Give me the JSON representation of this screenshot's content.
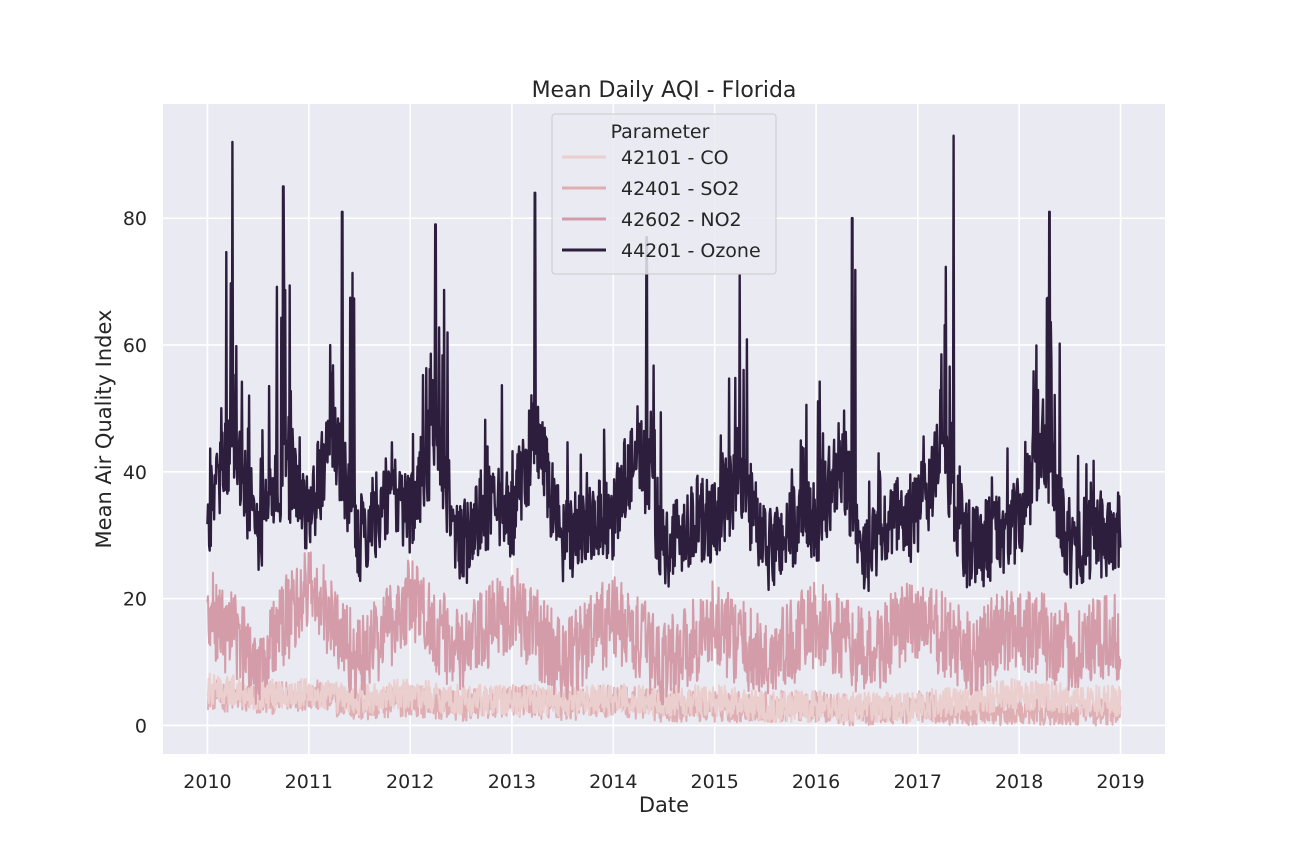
{
  "chart_data": {
    "type": "line",
    "title": "Mean Daily AQI - Florida",
    "xlabel": "Date",
    "ylabel": "Mean Air Quality Index",
    "xlim": [
      "2009-07-25",
      "2019-06-10"
    ],
    "ylim": [
      -4.5,
      98
    ],
    "x_ticks": [
      "2010",
      "2011",
      "2012",
      "2013",
      "2014",
      "2015",
      "2016",
      "2017",
      "2018",
      "2019"
    ],
    "y_ticks": [
      "0",
      "20",
      "40",
      "60",
      "80"
    ],
    "grid": true,
    "legend": {
      "title": "Parameter",
      "placement": "upper-center"
    },
    "background_color": "#eaeaf2",
    "series": [
      {
        "name": "42101 - CO",
        "color": "#ebcfcf",
        "x": [
          "2010-01-01",
          "2010-07-01",
          "2011-01-01",
          "2011-07-01",
          "2012-01-01",
          "2012-07-01",
          "2013-01-01",
          "2013-07-01",
          "2014-01-01",
          "2014-07-01",
          "2015-01-01",
          "2015-07-01",
          "2016-01-01",
          "2016-07-01",
          "2017-01-01",
          "2017-07-01",
          "2018-01-01",
          "2018-07-01",
          "2019-01-01"
        ],
        "values": [
          6,
          5,
          5,
          4,
          5,
          4,
          4,
          4,
          4,
          4,
          4,
          3,
          3,
          3,
          3,
          4,
          5,
          4,
          4
        ]
      },
      {
        "name": "42401 - SO2",
        "color": "#dfaeb3",
        "x": [
          "2010-01-01",
          "2010-07-01",
          "2011-01-01",
          "2011-07-01",
          "2012-01-01",
          "2012-07-01",
          "2013-01-01",
          "2013-07-01",
          "2014-01-01",
          "2014-07-01",
          "2015-01-01",
          "2015-07-01",
          "2016-01-01",
          "2016-07-01",
          "2017-01-01",
          "2017-07-01",
          "2018-01-01",
          "2018-07-01",
          "2019-01-01"
        ],
        "values": [
          5,
          4,
          5,
          3,
          4,
          3,
          4,
          3,
          4,
          3,
          3,
          3,
          3,
          2,
          3,
          2,
          2,
          2,
          2
        ]
      },
      {
        "name": "42602 - NO2",
        "color": "#d49ca8",
        "x": [
          "2010-01-01",
          "2010-07-01",
          "2011-01-01",
          "2011-07-01",
          "2012-01-01",
          "2012-07-01",
          "2013-01-01",
          "2013-07-01",
          "2014-01-01",
          "2014-07-01",
          "2015-01-01",
          "2015-07-01",
          "2016-01-01",
          "2016-07-01",
          "2017-01-01",
          "2017-07-01",
          "2018-01-01",
          "2018-07-01",
          "2019-01-01"
        ],
        "values": [
          18,
          10,
          22,
          10,
          20,
          11,
          19,
          10,
          17,
          10,
          16,
          10,
          16,
          11,
          17,
          11,
          16,
          12,
          14
        ]
      },
      {
        "name": "44201 - Ozone",
        "color": "#2d1e3e",
        "x": [
          "2010-01-01",
          "2010-04-01",
          "2010-07-01",
          "2010-10-01",
          "2011-01-01",
          "2011-04-01",
          "2011-07-01",
          "2011-10-01",
          "2012-01-01",
          "2012-04-01",
          "2012-07-01",
          "2012-10-01",
          "2013-01-01",
          "2013-04-01",
          "2013-07-01",
          "2013-10-01",
          "2014-01-01",
          "2014-04-01",
          "2014-07-01",
          "2014-10-01",
          "2015-01-01",
          "2015-04-01",
          "2015-07-01",
          "2015-10-01",
          "2016-01-01",
          "2016-04-01",
          "2016-07-01",
          "2016-10-01",
          "2017-01-01",
          "2017-04-01",
          "2017-07-01",
          "2017-10-01",
          "2018-01-01",
          "2018-04-01",
          "2018-07-01",
          "2018-10-01",
          "2019-01-01"
        ],
        "values": [
          33,
          45,
          30,
          40,
          33,
          46,
          29,
          36,
          34,
          45,
          28,
          34,
          33,
          46,
          28,
          33,
          33,
          45,
          28,
          32,
          32,
          40,
          27,
          31,
          32,
          42,
          26,
          32,
          33,
          43,
          27,
          30,
          32,
          45,
          28,
          30,
          30
        ],
        "peaks": [
          {
            "x": "2010-04-01",
            "value": 92
          },
          {
            "x": "2010-10-01",
            "value": 85
          },
          {
            "x": "2011-05-01",
            "value": 81
          },
          {
            "x": "2012-04-01",
            "value": 79
          },
          {
            "x": "2013-03-25",
            "value": 84
          },
          {
            "x": "2014-05-01",
            "value": 77
          },
          {
            "x": "2015-04-01",
            "value": 71
          },
          {
            "x": "2016-05-10",
            "value": 80
          },
          {
            "x": "2017-05-10",
            "value": 93
          },
          {
            "x": "2018-04-20",
            "value": 81
          }
        ]
      }
    ]
  }
}
